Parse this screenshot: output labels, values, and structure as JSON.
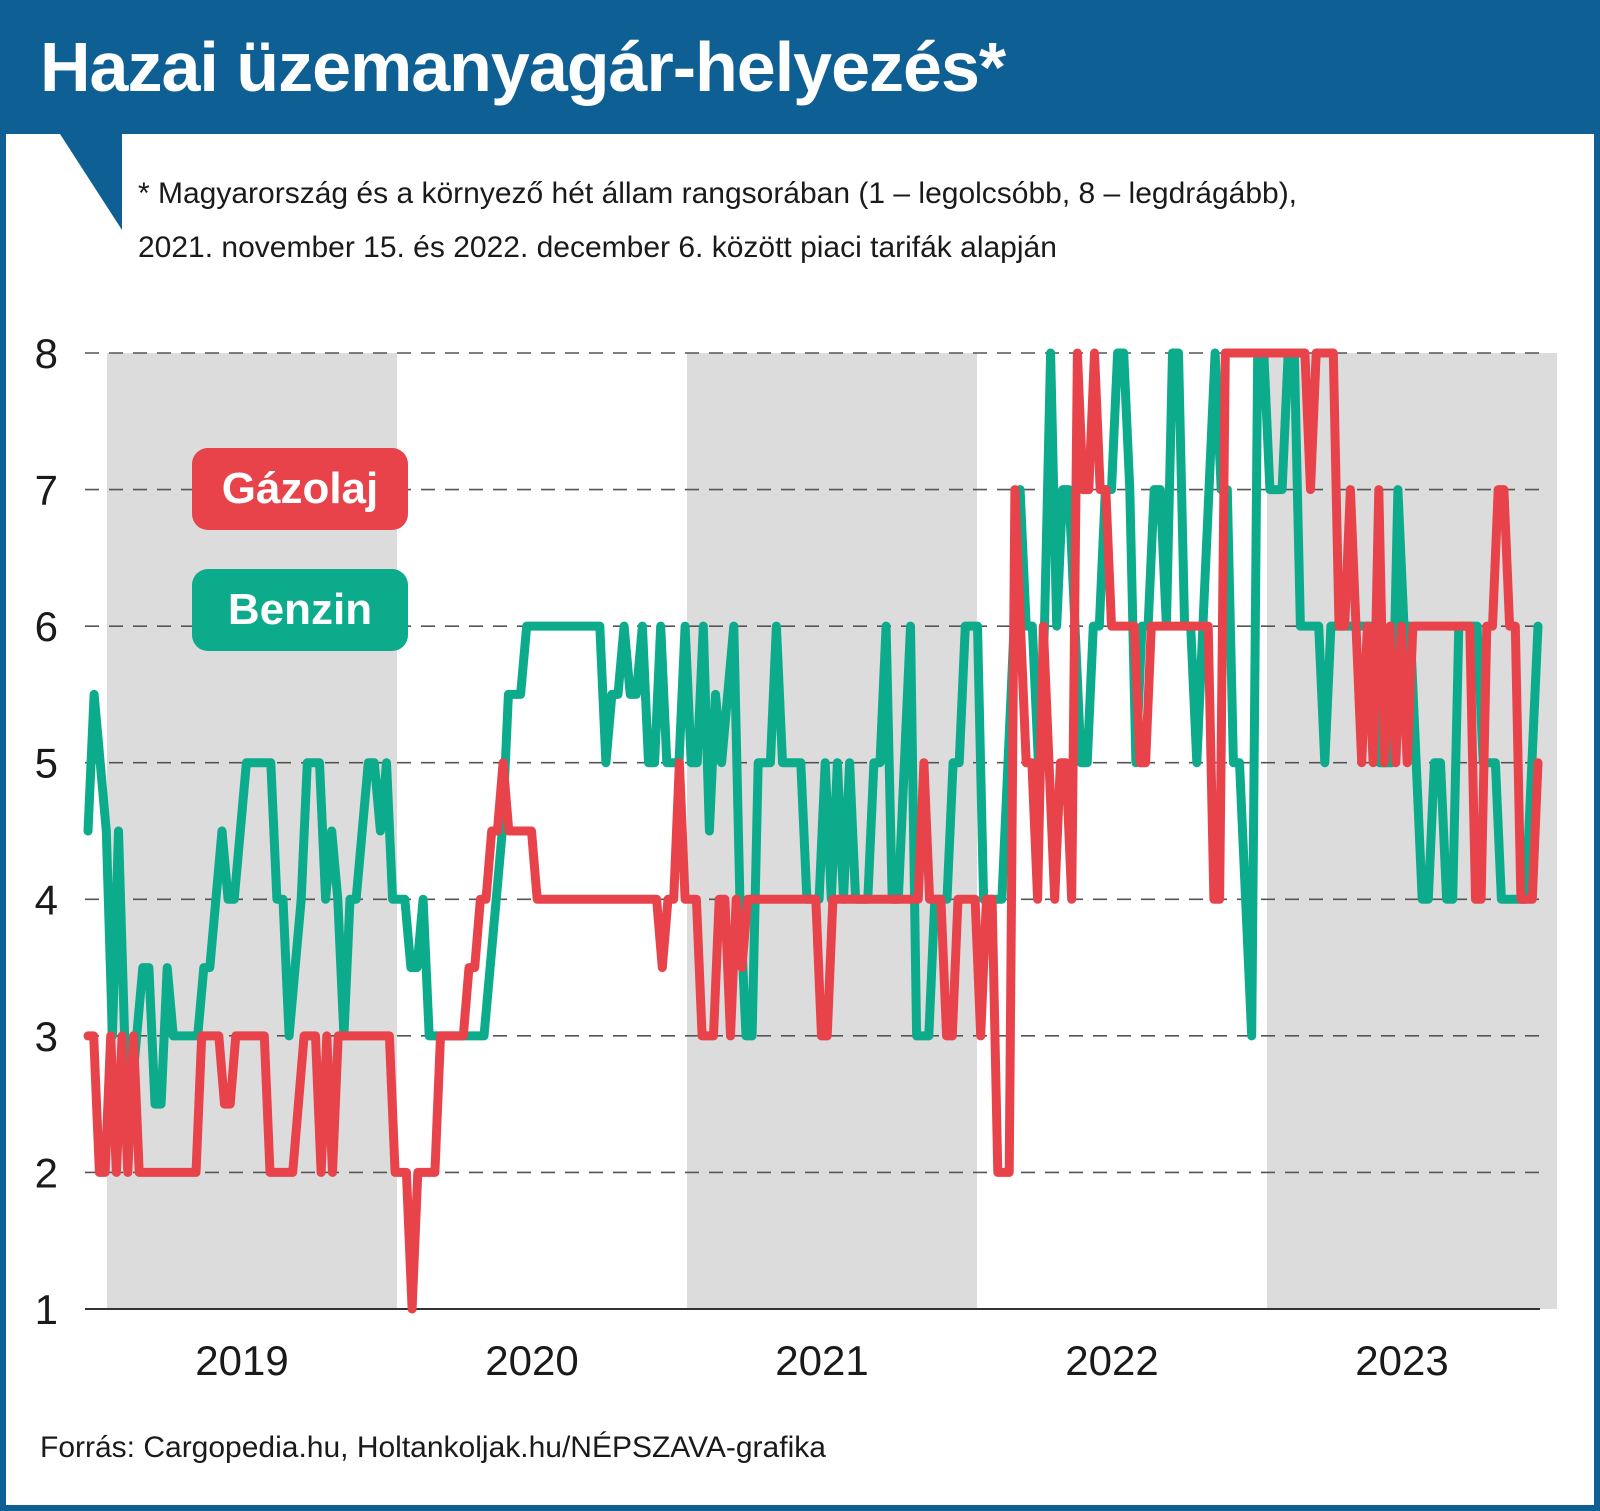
{
  "title": "Hazai üzemanyagár-helyezés*",
  "subtitle_lines": [
    "* Magyarország és a környező hét állam rangsorában (1 – legolcsóbb, 8 – legdrágább),",
    "2021. november 15. és 2022. december 6. között piaci tarifák alapján"
  ],
  "source": "Forrás: Cargopedia.hu, Holtankoljak.hu/NÉPSZAVA-grafika",
  "colors": {
    "brand": "#0e5f93",
    "diesel": "#e8434a",
    "petrol": "#0bab8c",
    "band": "#dcdcdc",
    "grid": "#555555"
  },
  "chart_data": {
    "type": "line",
    "title": "Hazai üzemanyagár-helyezés*",
    "xlabel": "",
    "ylabel": "",
    "ylim": [
      1,
      8
    ],
    "y_ticks": [
      "1",
      "2",
      "3",
      "4",
      "5",
      "6",
      "7",
      "8"
    ],
    "x_tick_labels": [
      "2019",
      "2020",
      "2021",
      "2022",
      "2023"
    ],
    "grid": true,
    "legend": "left",
    "shaded_bands": [
      "2019",
      "2021",
      "2023"
    ],
    "series": [
      {
        "name": "Gázolaj",
        "color": "#e8434a",
        "values": [
          3,
          3,
          2,
          2,
          3,
          2,
          3,
          2,
          3,
          2,
          2,
          2,
          2,
          2,
          2,
          2,
          2,
          2,
          2,
          2,
          3,
          3,
          3,
          3,
          2.5,
          2.5,
          3,
          3,
          3,
          3,
          3,
          3,
          2,
          2,
          2,
          2,
          2,
          2.5,
          3,
          3,
          3,
          2,
          3,
          2,
          3,
          3,
          3,
          3,
          3,
          3,
          3,
          3,
          3,
          3,
          2,
          2,
          2,
          1,
          2,
          2,
          2,
          2,
          3,
          3,
          3,
          3,
          3,
          3.5,
          3.5,
          4,
          4,
          4.5,
          4.5,
          5,
          4.5,
          4.5,
          4.5,
          4.5,
          4.5,
          4,
          4,
          4,
          4,
          4,
          4,
          4,
          4,
          4,
          4,
          4,
          4,
          4,
          4,
          4,
          4,
          4,
          4,
          4,
          4,
          4,
          4,
          3.5,
          4,
          4,
          5,
          4,
          4,
          4,
          3,
          3,
          3,
          4,
          4,
          3,
          4,
          3.5,
          4,
          4,
          4,
          4,
          4,
          4,
          4,
          4,
          4,
          4,
          4,
          4,
          4,
          3,
          3,
          4,
          4,
          4,
          4,
          4,
          4,
          4,
          4,
          4,
          4,
          4,
          4,
          4,
          4,
          4,
          4,
          5,
          4,
          4,
          4,
          3,
          3,
          4,
          4,
          4,
          4,
          3,
          4,
          4,
          2,
          2,
          2,
          7,
          6,
          5,
          5,
          4,
          6,
          5,
          4,
          5,
          5,
          4,
          8,
          7,
          7,
          8,
          7,
          7,
          6,
          6,
          6,
          6,
          6,
          5,
          5,
          6,
          6,
          6,
          6,
          6,
          6,
          6,
          6,
          6,
          6,
          6,
          4,
          4,
          8,
          8,
          8,
          8,
          8,
          8,
          8,
          8,
          8,
          8,
          8,
          8,
          8,
          8,
          8,
          7,
          8,
          8,
          8,
          8,
          6,
          6,
          7,
          6,
          5,
          6,
          5,
          7,
          5,
          6,
          5,
          6,
          5,
          6,
          6,
          6,
          6,
          6,
          6,
          6,
          6,
          6,
          6,
          6,
          4,
          4,
          6,
          6,
          7,
          7,
          6,
          6,
          4,
          4,
          4,
          5
        ],
        "note": "values sampled at equal time steps from left to right across 2019–2023"
      },
      {
        "name": "Benzin",
        "color": "#0bab8c",
        "values": [
          4.5,
          5.5,
          5,
          4.5,
          3,
          4.5,
          3,
          2.5,
          3,
          3.5,
          3.5,
          2.5,
          2.5,
          3.5,
          3,
          3,
          3,
          3,
          3,
          3.5,
          3.5,
          4,
          4.5,
          4,
          4,
          4.5,
          5,
          5,
          5,
          5,
          5,
          4,
          4,
          3,
          3.5,
          4,
          5,
          5,
          5,
          4,
          4.5,
          4,
          3,
          4,
          4,
          4.5,
          5,
          5,
          4.5,
          5,
          4,
          4,
          4,
          3.5,
          3.5,
          4,
          3,
          3,
          3,
          3,
          3,
          3,
          3,
          3,
          3,
          3,
          3.5,
          4,
          4.5,
          5.5,
          5.5,
          5.5,
          6,
          6,
          6,
          6,
          6,
          6,
          6,
          6,
          6,
          6,
          6,
          6,
          6,
          5,
          5.5,
          5.5,
          6,
          5.5,
          5.5,
          6,
          5,
          5,
          6,
          5,
          5,
          5,
          6,
          5,
          5,
          6,
          4.5,
          5.5,
          5,
          5.5,
          6,
          4,
          3,
          3,
          5,
          5,
          5,
          6,
          5,
          5,
          5,
          5,
          4,
          4,
          4,
          5,
          4,
          5,
          4,
          5,
          4,
          4,
          4,
          5,
          5,
          6,
          4,
          4,
          5,
          6,
          3,
          3,
          3,
          4,
          4,
          4,
          5,
          5,
          6,
          6,
          6,
          4,
          4,
          4,
          4,
          5,
          6,
          7,
          6,
          6,
          5,
          6,
          8,
          6,
          7,
          7,
          6,
          5,
          5,
          6,
          6,
          7,
          7,
          8,
          8,
          7,
          5,
          6,
          6,
          7,
          7,
          6,
          8,
          8,
          6,
          6,
          5,
          6,
          7,
          8,
          7,
          7,
          5,
          5,
          4,
          3,
          8,
          8,
          7,
          7,
          7,
          8,
          8,
          6,
          6,
          6,
          6,
          5,
          6,
          6,
          6,
          6,
          6,
          6,
          6,
          6,
          5,
          5,
          5,
          7,
          6,
          6,
          5,
          4,
          4,
          5,
          5,
          4,
          4,
          6,
          6,
          6,
          6,
          5,
          5,
          5,
          4,
          4,
          4,
          4,
          4,
          5,
          6
        ],
        "note": "values sampled at equal time steps from left to right across 2019–2023"
      }
    ]
  }
}
